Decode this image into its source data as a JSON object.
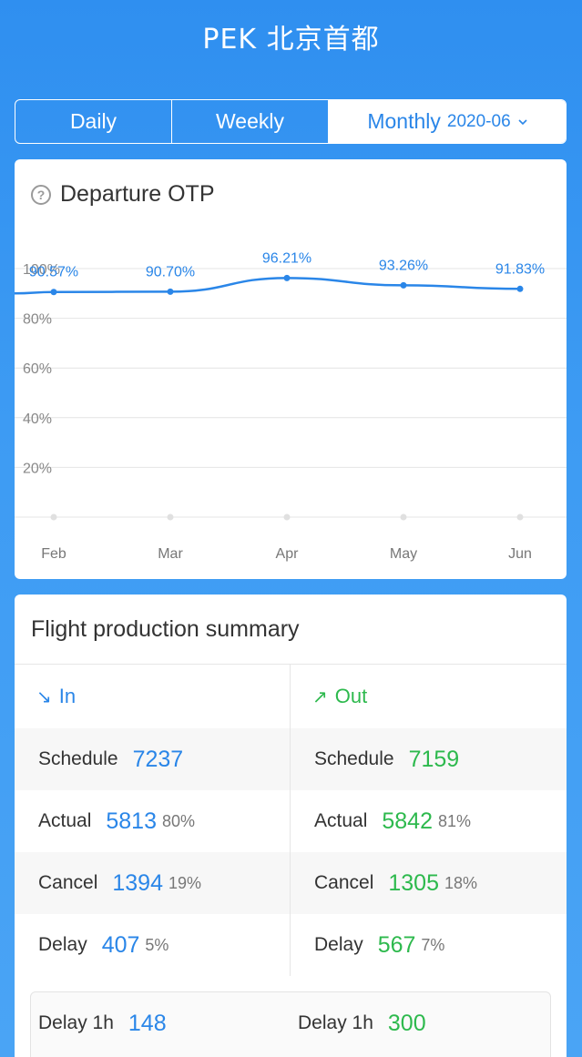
{
  "header": {
    "title": "PEK 北京首都"
  },
  "tabs": {
    "daily": "Daily",
    "weekly": "Weekly",
    "monthly": "Monthly",
    "month_value": "2020-06"
  },
  "otp_card": {
    "title": "Departure OTP"
  },
  "chart_data": {
    "type": "line",
    "x": [
      "Feb",
      "Mar",
      "Apr",
      "May",
      "Jun"
    ],
    "series": [
      {
        "values": [
          90.57,
          90.7,
          96.21,
          93.26,
          91.83
        ]
      }
    ],
    "data_labels": [
      "90.57%",
      "90.70%",
      "96.21%",
      "93.26%",
      "91.83%"
    ],
    "y_ticks": [
      "20%",
      "40%",
      "60%",
      "80%",
      "100%"
    ],
    "ylim": [
      0,
      100
    ],
    "grid": true,
    "color": "#2a86e8"
  },
  "summary": {
    "title": "Flight production summary",
    "in": {
      "label": "In",
      "schedule_label": "Schedule",
      "schedule": "7237",
      "actual_label": "Actual",
      "actual": "5813",
      "actual_pct": "80%",
      "cancel_label": "Cancel",
      "cancel": "1394",
      "cancel_pct": "19%",
      "delay_label": "Delay",
      "delay": "407",
      "delay_pct": "5%",
      "delay1h_label": "Delay 1h",
      "delay1h": "148"
    },
    "out": {
      "label": "Out",
      "schedule_label": "Schedule",
      "schedule": "7159",
      "actual_label": "Actual",
      "actual": "5842",
      "actual_pct": "81%",
      "cancel_label": "Cancel",
      "cancel": "1305",
      "cancel_pct": "18%",
      "delay_label": "Delay",
      "delay": "567",
      "delay_pct": "7%",
      "delay1h_label": "Delay 1h",
      "delay1h": "300"
    }
  }
}
